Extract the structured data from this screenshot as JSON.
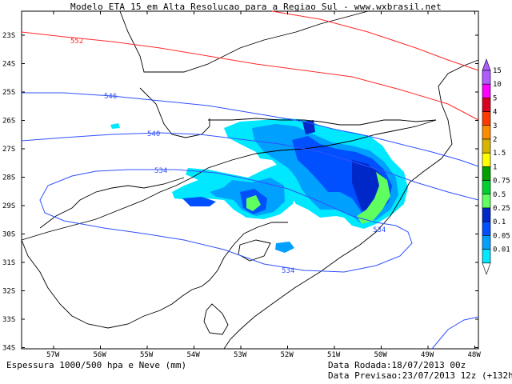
{
  "title": "Modelo ETA 15 em Alta Resolucao para a Regiao Sul - www.wxbrasil.net",
  "latitude_labels": [
    "23S",
    "24S",
    "25S",
    "26S",
    "27S",
    "28S",
    "29S",
    "30S",
    "31S",
    "32S",
    "33S",
    "34S"
  ],
  "longitude_labels": [
    "57W",
    "56W",
    "55W",
    "54W",
    "53W",
    "52W",
    "51W",
    "50W",
    "49W",
    "48W"
  ],
  "contours": {
    "red": [
      {
        "label": "552",
        "color": "#ff2a2a"
      }
    ],
    "blue": [
      {
        "label": "546",
        "color": "#3050ff"
      },
      {
        "label": "540",
        "color": "#3050ff"
      },
      {
        "label": "534",
        "color": "#3050ff"
      },
      {
        "label": "534",
        "color": "#3050ff"
      },
      {
        "label": "534",
        "color": "#3050ff"
      }
    ]
  },
  "colorbar": {
    "levels": [
      "15",
      "10",
      "5",
      "4",
      "3",
      "2",
      "1.5",
      "1",
      "0.75",
      "0.5",
      "0.25",
      "0.1",
      "0.05",
      "0.01"
    ],
    "colors": [
      "#b05cff",
      "#ff00ff",
      "#d8001f",
      "#ff3a00",
      "#ff8c00",
      "#d8b400",
      "#ffff00",
      "#00a000",
      "#00d030",
      "#60ff60",
      "#0028c8",
      "#0050ff",
      "#00a0ff",
      "#00e8ff"
    ]
  },
  "colors": {
    "precip_light": "#00e8ff",
    "precip_mid": "#00a0ff",
    "precip_blue": "#0050ff",
    "precip_dark": "#0028c8",
    "precip_green": "#60ff60"
  },
  "footer": {
    "left": "Espessura 1000/500 hpa e Neve (mm)",
    "run_date": "Data Rodada:18/07/2013 00z",
    "forecast_date": "Data Previsao:23/07/2013 12z (+132h)"
  }
}
